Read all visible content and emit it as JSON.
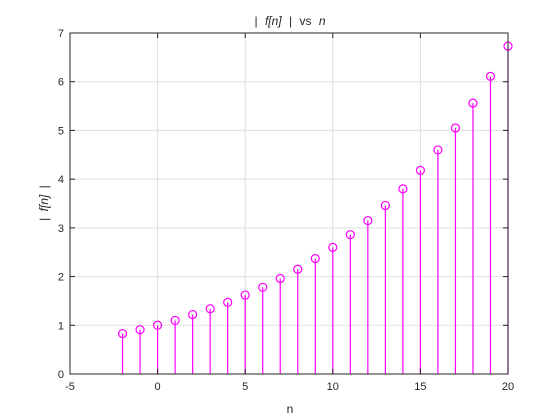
{
  "chart_data": {
    "type": "stem",
    "title": "| f[n] | vs n",
    "title_parts": {
      "bar_left": "|",
      "fn": "f[n]",
      "bar_right": "|",
      "vs": "vs",
      "n": "n"
    },
    "xlabel": "n",
    "ylabel": "| f[n] |",
    "ylabel_parts": {
      "bar_left": "|",
      "fn": "f[n]",
      "bar_right": "|"
    },
    "xlim": [
      -5,
      20
    ],
    "ylim": [
      0,
      7
    ],
    "xticks": [
      -5,
      0,
      5,
      10,
      15,
      20
    ],
    "yticks": [
      0,
      1,
      2,
      3,
      4,
      5,
      6,
      7
    ],
    "grid": true,
    "color": "#ff00ff",
    "marker": "circle",
    "series": [
      {
        "name": "|f[n]|",
        "x": [
          -2,
          -1,
          0,
          1,
          2,
          3,
          4,
          5,
          6,
          7,
          8,
          9,
          10,
          11,
          12,
          13,
          14,
          15,
          16,
          17,
          18,
          19,
          20
        ],
        "y": [
          0.83,
          0.91,
          1.0,
          1.1,
          1.22,
          1.34,
          1.47,
          1.62,
          1.78,
          1.96,
          2.15,
          2.37,
          2.6,
          2.86,
          3.15,
          3.46,
          3.8,
          4.18,
          4.6,
          5.05,
          5.56,
          6.11,
          6.73
        ]
      }
    ]
  }
}
